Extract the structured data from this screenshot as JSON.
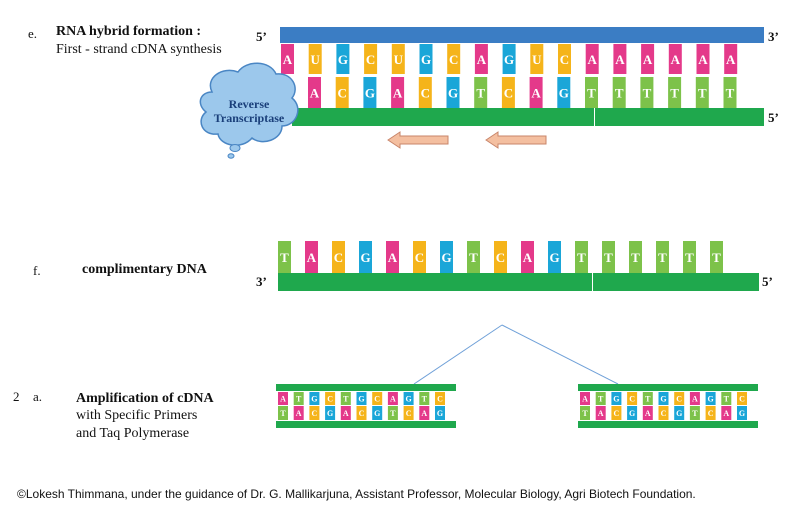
{
  "colors": {
    "A": "#e4398a",
    "U": "#f5b41a",
    "G": "#1aa6d8",
    "C": "#f5b41a",
    "T": "#7dc24a",
    "rna_strand": "#3b7dc4",
    "dna_strand": "#1fa84d",
    "arrow_fill": "#f4bfa0",
    "arrow_stroke": "#c8856a",
    "enzyme_fill": "#9cc8ec",
    "enzyme_stroke": "#4a86c4"
  },
  "step_e": {
    "letter": "e.",
    "title": "RNA hybrid formation :",
    "subtitle": "First - strand cDNA synthesis",
    "label_5_top": "5’",
    "label_3_top": "3’",
    "label_5_bottom": "5’",
    "rna_bases": [
      "A",
      "U",
      "G",
      "C",
      "U",
      "G",
      "C",
      "A",
      "G",
      "U",
      "C",
      "A",
      "A",
      "A",
      "A",
      "A",
      "A"
    ],
    "dna_bases": [
      "A",
      "C",
      "G",
      "A",
      "C",
      "G",
      "T",
      "C",
      "A",
      "G",
      "T",
      "T",
      "T",
      "T",
      "T",
      "T"
    ],
    "enzyme_label": "Reverse Transcriptase"
  },
  "step_f": {
    "letter": "f.",
    "title": "complimentary DNA",
    "label_3": "3’",
    "label_5": "5’",
    "bases": [
      "T",
      "A",
      "C",
      "G",
      "A",
      "C",
      "G",
      "T",
      "C",
      "A",
      "G",
      "T",
      "T",
      "T",
      "T",
      "T",
      "T"
    ]
  },
  "step_2a": {
    "number": "2",
    "letter": "a.",
    "title": "Amplification of cDNA",
    "line2": "with Specific Primers",
    "line3": "and Taq Polymerase",
    "top_bases": [
      "A",
      "T",
      "G",
      "C",
      "T",
      "G",
      "C",
      "A",
      "G",
      "T",
      "C"
    ],
    "bottom_bases": [
      "T",
      "A",
      "C",
      "G",
      "A",
      "C",
      "G",
      "T",
      "C",
      "A",
      "G"
    ]
  },
  "credit": "©Lokesh Thimmana, under the guidance of Dr. G. Mallikarjuna, Assistant Professor,  Molecular Biology, Agri Biotech Foundation."
}
